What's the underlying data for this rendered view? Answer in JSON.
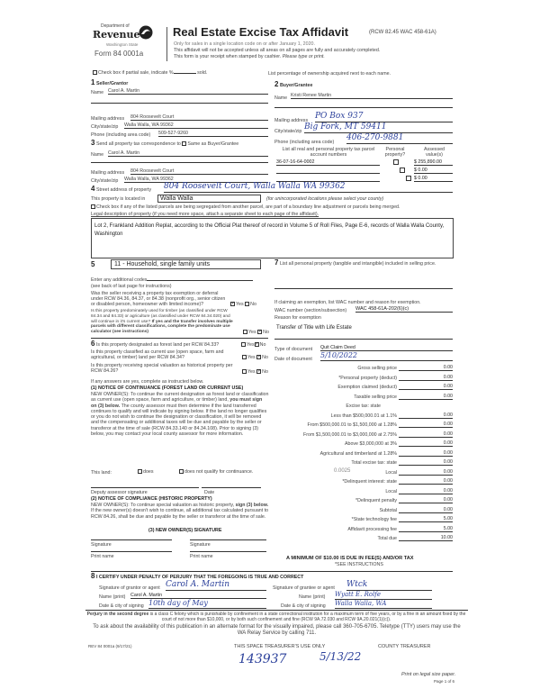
{
  "header": {
    "dept": "Department of",
    "revenue": "Revenue",
    "state": "Washington State",
    "form": "Form 84 0001a",
    "title": "Real Estate Excise Tax Affidavit",
    "rcw": "(RCW 82.45 WAC 458-61A)",
    "line1": "Only for sales in a single location code on or after January 1, 2020.",
    "line2": "This affidavit will not be accepted unless all areas on all pages are fully and accurately completed.",
    "line3": "This form is your receipt when stamped by cashier.",
    "line3b": "Please type or print."
  },
  "partial": {
    "label": "Check box if partial sale, indicate %",
    "sold": "sold.",
    "checked": false,
    "list_pct": "List percentage of ownership acquired next to each name."
  },
  "seller": {
    "num": "1",
    "title": "Seller/Grantor",
    "name_label": "Name",
    "name": "Carol A. Martin",
    "mail_label": "Mailing address",
    "mail": "804 Roosevelt Court",
    "city_label": "City/state/zip",
    "city": "Walla Walla, WA 99362",
    "phone_label": "Phone (including area code)",
    "phone": "509-527-9260"
  },
  "buyer": {
    "num": "2",
    "title": "Buyer/Grantee",
    "name_label": "Name",
    "name": "Kristi Renee Martin",
    "mail_label": "Mailing address",
    "mail": "PO Box 937",
    "city_label": "City/state/zip",
    "city": "Big Fork, MT 59411",
    "phone_label": "Phone (including area code)",
    "phone": "406-270-9881"
  },
  "tax_corr": {
    "num": "3",
    "label": "Send all property tax correspondence to",
    "same_label": "Same as Buyer/Grantee",
    "same_checked": false,
    "name_label": "Name",
    "name": "Carol A. Martin",
    "mail_label": "Mailing address",
    "mail": "804 Roosevelt Court",
    "city_label": "City/state/zip",
    "city": "Walla Walla, WA 99362"
  },
  "parcels": {
    "col1": "List all real and personal property tax parcel account numbers",
    "col2": "Personal property?",
    "col3": "Assessed value(s)",
    "rows": [
      {
        "number": "36-07-16-64-0002",
        "personal": false,
        "value": "$ 255,890.00"
      },
      {
        "number": "",
        "personal": false,
        "value": "$ 0.00"
      },
      {
        "number": "",
        "personal": false,
        "value": "$ 0.00"
      }
    ]
  },
  "property": {
    "num": "4",
    "street_label": "Street address of property",
    "street": "804 Roosevelt Court, Walla Walla WA 99362",
    "located_label": "This property is located in",
    "located": "Walla Walla",
    "located_note": "(for unincorporated locations please select your county)",
    "segregated_label": "Check box if any of the listed parcels are being segregated from another parcel, are part of a boundary line adjustment or parcels being merged.",
    "segregated_checked": false,
    "legal_label": "Legal description of property (if you need more space, attach a separate sheet to each page of the affidavit).",
    "legal": "Lot 2, Frankland Addition Replat, according to the Official Plat thereof of record in Volume 5 of Roll Files, Page E-6, records of Walla Walla County, Washington"
  },
  "sec5": {
    "num": "5",
    "code": "11 - Household, single family units",
    "additional_label": "Enter any additional codes",
    "see_back": "(see back of last page for instructions)",
    "q1": "Was the seller receiving a property tax exemption or deferral under RCW 84.36, 84.37, or 84.38 (nonprofit org., senior citizen or disabled person, homeowner with limited income)?",
    "q1_yes": true,
    "q2": "Is this property predominately used for timber (as classified under RCW 84.34 and 84.33) or agriculture (as classified under RCW 84.34.020) and will continue in it's current use?",
    "q2b": "If yes and the transfer involves multiple parcels with different classifications, complete the predominate use calculator (see instructions)",
    "q2_yes": false,
    "yes": "Yes",
    "no": "No"
  },
  "sec6": {
    "num": "6",
    "q1": "Is this property designated as forest land per RCW 84.33?",
    "q2": "Is this property classified as current use (open space, farm and agricultural, or timber) land per RCW 84.34?",
    "q3": "Is this property receiving special valuation as historical property per RCW 84.26?",
    "if_yes": "If any answers are yes, complete as instructed below.",
    "n1_title": "(1) NOTICE OF CONTINUANCE (FOREST LAND OR CURRENT USE)",
    "n1_a": "NEW OWNER(S): To continue the current designation as forest land or classification as current use (open space, farm and agriculture, or timber) land,",
    "n1_bold": "you must sign on (3) below.",
    "n1_b": "The county assessor must then determine if the land transferred continues to qualify and will indicate by signing below. If the land no longer qualifies or you do not wish to continue the designation or classification, it will be removed and the compensating or additional taxes will be due and payable by the seller or transferor at the time of sale (RCW 84.33.140 or 84.34.108). Prior to signing (3) below, you may contact your local county assessor for more information.",
    "this_land": "This land:",
    "does": "does",
    "does_not": "does not qualify for continuance.",
    "deputy_sig": "Deputy assessor signature",
    "date": "Date",
    "n2_title": "(2) NOTICE OF COMPLIANCE (HISTORIC PROPERTY)",
    "n2_a": "NEW OWNER(S): To continue special valuation as historic property,",
    "n2_bold": "sign (3) below.",
    "n2_b": "If the new owner(s) doesn't wish to continue, all additional tax calculated pursuant to RCW 84.26, shall be due and payable by the seller or transferor at the time of sale.",
    "n3_title": "(3) NEW OWNER(S) SIGNATURE",
    "signature": "Signature",
    "print_name": "Print name"
  },
  "sec7": {
    "num": "7",
    "label": "List all personal property (tangible and intangible) included in selling price.",
    "exempt_label": "If claiming an exemption, list WAC number and reason for exemption.",
    "wac_label": "WAC number (section/subsection)",
    "wac": "WAC 458-61A-202(6)(c)",
    "reason_label": "Reason for exemption",
    "reason": "Transfer of Title with Life Estate",
    "doc_type_label": "Type of document",
    "doc_type": "Quit Claim Deed",
    "doc_date_label": "Date of document",
    "doc_date": "5/10/2022"
  },
  "tax": {
    "rows": [
      {
        "label": "Gross selling price",
        "value": "0.00"
      },
      {
        "label": "*Personal property (deduct)",
        "value": "0.00"
      },
      {
        "label": "Exemption claimed (deduct)",
        "value": "0.00"
      },
      {
        "label": "Taxable selling price",
        "value": "0.00"
      },
      {
        "label": "Excise tax: state",
        "value": ""
      },
      {
        "label": "Less than $500,000.01 at 1.1%",
        "value": "0.00"
      },
      {
        "label": "From $500,000.01 to $1,500,000 at 1.28%",
        "value": "0.00"
      },
      {
        "label": "From $1,500,000.01 to $3,000,000 at 2.75%",
        "value": "0.00"
      },
      {
        "label": "Above $3,000,000 at 3%",
        "value": "0.00"
      },
      {
        "label": "Agricultural and timberland at 1.28%",
        "value": "0.00"
      },
      {
        "label": "Total excise tax: state",
        "value": "0.00"
      },
      {
        "label": "Local",
        "value": "0.00"
      },
      {
        "label": "*Delinquent interest: state",
        "value": "0.00"
      },
      {
        "label": "Local",
        "value": "0.00"
      },
      {
        "label": "*Delinquent penalty",
        "value": "0.00"
      },
      {
        "label": "Subtotal",
        "value": "0.00"
      },
      {
        "label": "*State technology fee",
        "value": "5.00"
      },
      {
        "label": "Affidavit processing fee",
        "value": "5.00"
      },
      {
        "label": "Total due",
        "value": "10.00"
      }
    ],
    "local_rate": "0.0025",
    "minimum": "A MINIMUM OF $10.00 IS DUE IN FEE(S) AND/OR TAX",
    "see_instr": "*SEE INSTRUCTIONS"
  },
  "sec8": {
    "num": "8",
    "certify": "I CERTIFY UNDER PENALTY OF PERJURY THAT THE FOREGOING IS TRUE AND CORRECT",
    "grantor_sig_label": "Signature of grantor or agent",
    "grantor_sig": "Carol A. Martin",
    "grantor_name_label": "Name (print)",
    "grantor_name": "Carol A. Martin",
    "grantor_date_label": "Date & city of signing",
    "grantor_date": "10th day of May",
    "grantee_sig_label": "Signature of grantee or agent",
    "grantee_sig": "Wtck",
    "grantee_name_label": "Name (print)",
    "grantee_name": "Wyatt E. Rolfe",
    "grantee_date_label": "Date & city of signing",
    "grantee_date": "Walla Walla, WA"
  },
  "footer": {
    "perjury_bold": "Perjury in the second degree",
    "perjury": "is a class C felony which is punishable by confinement in a state correctional institution for a maximum term of five years, or by a fine in an amount fixed by the court of not more than $10,000, or by both such confinement and fine (RCW 9A.72.030 and RCW 9A.20.021(1)(c)).",
    "alt_format": "To ask about the availability of this publication in an alternate format for the visually impaired, please call 360-705-6705. Teletype (TTY) users may use the WA Relay Service by calling 711.",
    "rev": "REV 84 0001a  (9/17/21)",
    "treasurer_use": "THIS SPACE TREASURER'S USE ONLY",
    "county_treasurer": "COUNTY TREASURER",
    "stamp_num": "143937",
    "stamp_date": "5/13/22",
    "legal_paper": "Print on legal size paper.",
    "page": "Page 1 of 6"
  }
}
